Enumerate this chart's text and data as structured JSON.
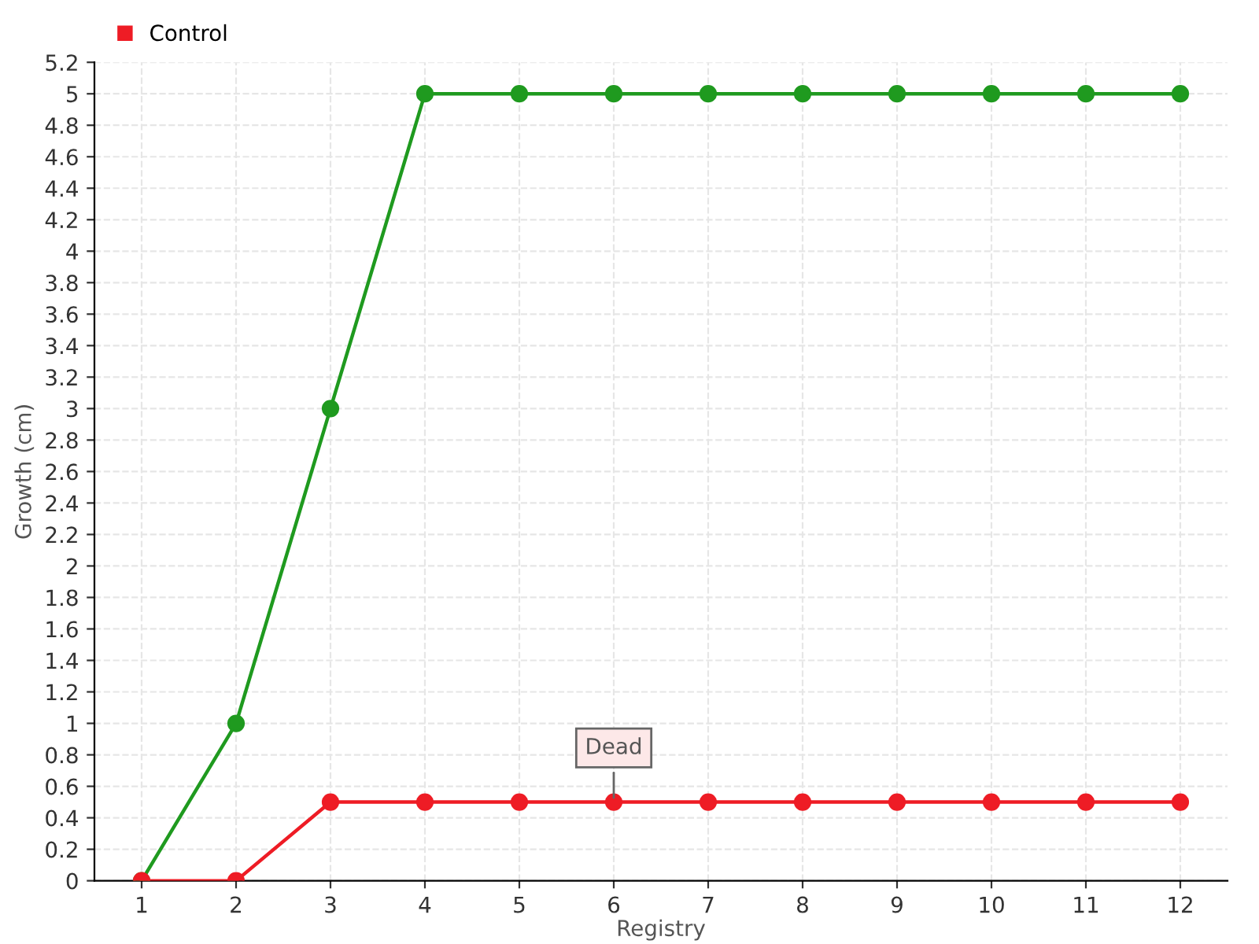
{
  "chart_data": {
    "type": "line",
    "xlabel": "Registry",
    "ylabel": "Growth (cm)",
    "categories": [
      "1",
      "2",
      "3",
      "4",
      "5",
      "6",
      "7",
      "8",
      "9",
      "10",
      "11",
      "12"
    ],
    "series": [
      {
        "color": "#1f9a1f",
        "values": [
          0,
          1,
          3,
          5,
          5,
          5,
          5,
          5,
          5,
          5,
          5,
          5
        ]
      },
      {
        "name": "Control",
        "color": "#ee1c25",
        "values": [
          0,
          0,
          0.5,
          0.5,
          0.5,
          0.5,
          0.5,
          0.5,
          0.5,
          0.5,
          0.5,
          0.5
        ]
      }
    ],
    "ylim": [
      0,
      5.2
    ],
    "yticks": [
      0,
      0.2,
      0.4,
      0.6,
      0.8,
      1,
      1.2,
      1.4,
      1.6,
      1.8,
      2,
      2.2,
      2.4,
      2.6,
      2.8,
      3,
      3.2,
      3.4,
      3.6,
      3.8,
      4,
      4.2,
      4.4,
      4.6,
      4.8,
      5,
      5.2
    ],
    "annotations": [
      {
        "text": "Dead",
        "x": "6",
        "y": 0.5
      }
    ],
    "grid": true,
    "legend": "top left",
    "marker": "circle",
    "line_style": "solid"
  }
}
